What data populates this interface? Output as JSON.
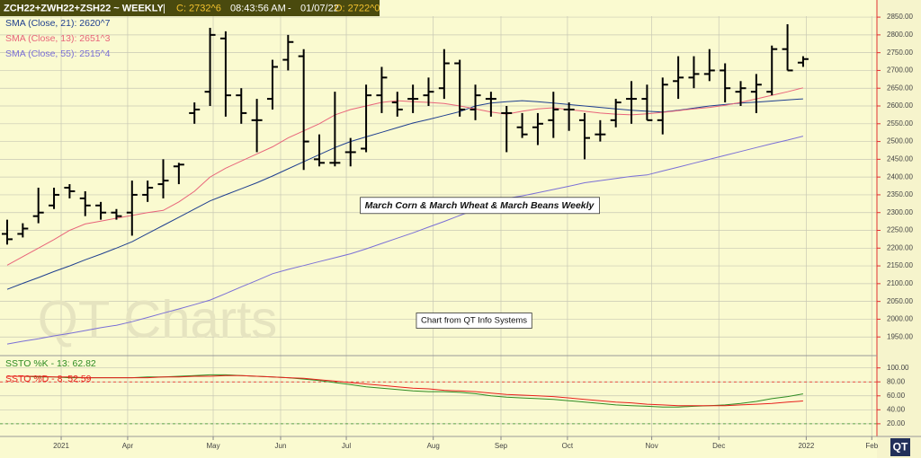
{
  "header": {
    "symbol": "ZCH22+ZWH22+ZSH22  ~  WEEKLY",
    "sep": "|",
    "close": "C: 2732^6",
    "time": "08:43:56 AM",
    "dash": "-",
    "date": "01/07/22",
    "open": "O: 2722^0"
  },
  "logo": "QT",
  "chart_data": [
    {
      "type": "ohlc",
      "color": "#000000",
      "watermark": "QT Charts",
      "annotations": [
        "March Corn & March Wheat & March Beans Weekly",
        "Chart from QT Info Systems"
      ],
      "x": [
        0,
        1,
        2,
        3,
        4,
        5,
        6,
        7,
        8,
        9,
        10,
        11,
        12,
        13,
        14,
        15,
        16,
        17,
        18,
        19,
        20,
        21,
        22,
        23,
        24,
        25,
        26,
        27,
        28,
        29,
        30,
        31,
        32,
        33,
        34,
        35,
        36,
        37,
        38,
        39,
        40,
        41,
        42,
        43,
        44,
        45,
        46,
        47,
        48,
        49,
        50,
        51
      ],
      "open": [
        2240,
        2240,
        2290,
        2320,
        2370,
        2340,
        2320,
        2300,
        2300,
        2350,
        2380,
        2430,
        2580,
        2640,
        2790,
        2630,
        2560,
        2620,
        2730,
        2740,
        2450,
        2440,
        2470,
        2480,
        2630,
        2610,
        2620,
        2630,
        2650,
        2720,
        2590,
        2620,
        2580,
        2540,
        2540,
        2560,
        2590,
        2560,
        2520,
        2560,
        2620,
        2620,
        2560,
        2670,
        2680,
        2690,
        2700,
        2640,
        2640,
        2640,
        2760,
        2722
      ],
      "high": [
        2280,
        2270,
        2370,
        2370,
        2380,
        2360,
        2330,
        2310,
        2390,
        2390,
        2450,
        2440,
        2610,
        2820,
        2810,
        2650,
        2620,
        2730,
        2800,
        2760,
        2520,
        2640,
        2510,
        2660,
        2710,
        2640,
        2660,
        2680,
        2760,
        2730,
        2660,
        2640,
        2600,
        2580,
        2580,
        2640,
        2610,
        2580,
        2560,
        2620,
        2670,
        2660,
        2680,
        2740,
        2740,
        2760,
        2720,
        2670,
        2690,
        2770,
        2830,
        2740
      ],
      "low": [
        2210,
        2230,
        2270,
        2310,
        2340,
        2290,
        2280,
        2280,
        2235,
        2330,
        2340,
        2380,
        2550,
        2600,
        2570,
        2550,
        2470,
        2590,
        2700,
        2420,
        2430,
        2430,
        2430,
        2470,
        2580,
        2570,
        2580,
        2600,
        2620,
        2570,
        2560,
        2570,
        2470,
        2510,
        2490,
        2510,
        2530,
        2450,
        2500,
        2540,
        2550,
        2560,
        2520,
        2620,
        2650,
        2670,
        2610,
        2600,
        2580,
        2630,
        2700,
        2710
      ],
      "close": [
        2225,
        2255,
        2300,
        2350,
        2360,
        2320,
        2300,
        2290,
        2350,
        2370,
        2390,
        2435,
        2590,
        2800,
        2630,
        2580,
        2560,
        2710,
        2780,
        2500,
        2440,
        2440,
        2470,
        2630,
        2680,
        2590,
        2620,
        2640,
        2720,
        2590,
        2630,
        2620,
        2580,
        2520,
        2550,
        2590,
        2590,
        2510,
        2520,
        2610,
        2620,
        2560,
        2660,
        2680,
        2690,
        2700,
        2650,
        2650,
        2660,
        2760,
        2700,
        2732
      ],
      "overlays": [
        {
          "name": "SMA (Close, 21): 2620^7",
          "color": "#1f3f8f",
          "values": [
            2084,
            2101,
            2117,
            2134,
            2150,
            2167,
            2183,
            2200,
            2218,
            2241,
            2264,
            2287,
            2310,
            2333,
            2350,
            2367,
            2384,
            2403,
            2423,
            2443,
            2463,
            2483,
            2500,
            2513,
            2526,
            2539,
            2552,
            2562,
            2573,
            2584,
            2600,
            2608,
            2612,
            2615,
            2612,
            2608,
            2604,
            2600,
            2596,
            2592,
            2588,
            2585,
            2583,
            2588,
            2594,
            2600,
            2604,
            2608,
            2611,
            2614,
            2617,
            2620
          ]
        },
        {
          "name": "SMA (Close, 13): 2651^3",
          "color": "#e8647a",
          "values": [
            2152,
            2176,
            2200,
            2224,
            2250,
            2268,
            2276,
            2284,
            2292,
            2300,
            2306,
            2330,
            2360,
            2400,
            2425,
            2445,
            2465,
            2485,
            2510,
            2530,
            2550,
            2575,
            2590,
            2600,
            2610,
            2615,
            2612,
            2610,
            2607,
            2600,
            2592,
            2583,
            2577,
            2585,
            2592,
            2595,
            2590,
            2585,
            2580,
            2577,
            2575,
            2578,
            2582,
            2587,
            2592,
            2596,
            2602,
            2610,
            2620,
            2630,
            2640,
            2651
          ]
        },
        {
          "name": "SMA (Close, 55): 2515^4",
          "color": "#7a6fd6",
          "values": [
            1930,
            1938,
            1945,
            1953,
            1960,
            1968,
            1976,
            1983,
            1993,
            2005,
            2017,
            2029,
            2041,
            2054,
            2072,
            2091,
            2109,
            2128,
            2140,
            2151,
            2162,
            2173,
            2184,
            2198,
            2213,
            2228,
            2243,
            2259,
            2275,
            2292,
            2308,
            2325,
            2340,
            2347,
            2356,
            2365,
            2374,
            2384,
            2390,
            2396,
            2402,
            2406,
            2417,
            2428,
            2439,
            2450,
            2461,
            2472,
            2483,
            2494,
            2504,
            2515
          ]
        }
      ],
      "xlim": [
        -0.46,
        55.73
      ],
      "xticks": [
        {
          "value": 3.46,
          "label": "2021"
        },
        {
          "value": 7.72,
          "label": "Apr"
        },
        {
          "value": 13.2,
          "label": "May"
        },
        {
          "value": 17.52,
          "label": "Jun"
        },
        {
          "value": 21.73,
          "label": "Jul"
        },
        {
          "value": 27.3,
          "label": "Aug"
        },
        {
          "value": 31.64,
          "label": "Sep"
        },
        {
          "value": 35.9,
          "label": "Oct"
        },
        {
          "value": 41.3,
          "label": "Nov"
        },
        {
          "value": 45.6,
          "label": "Dec"
        },
        {
          "value": 51.2,
          "label": "2022"
        },
        {
          "value": 55.4,
          "label": "Feb"
        }
      ],
      "ylim": [
        1900,
        2878
      ],
      "yticks": [
        {
          "value": 1950,
          "label": "1950.00"
        },
        {
          "value": 2000,
          "label": "2000.00"
        },
        {
          "value": 2050,
          "label": "2050.00"
        },
        {
          "value": 2100,
          "label": "2100.00"
        },
        {
          "value": 2150,
          "label": "2150.00"
        },
        {
          "value": 2200,
          "label": "2200.00"
        },
        {
          "value": 2250,
          "label": "2250.00"
        },
        {
          "value": 2300,
          "label": "2300.00"
        },
        {
          "value": 2350,
          "label": "2350.00"
        },
        {
          "value": 2400,
          "label": "2400.00"
        },
        {
          "value": 2450,
          "label": "2450.00"
        },
        {
          "value": 2500,
          "label": "2500.00"
        },
        {
          "value": 2550,
          "label": "2550.00"
        },
        {
          "value": 2600,
          "label": "2600.00"
        },
        {
          "value": 2650,
          "label": "2650.00"
        },
        {
          "value": 2700,
          "label": "2700.00"
        },
        {
          "value": 2750,
          "label": "2750.00"
        },
        {
          "value": 2800,
          "label": "2800.00"
        },
        {
          "value": 2850,
          "label": "2850.00"
        }
      ],
      "grid": true
    },
    {
      "type": "line",
      "series": [
        {
          "name": "SSTO %K - 13: 62.82",
          "color": "#2e8b22",
          "values": [
            88,
            88,
            87,
            87,
            86,
            86,
            86,
            86,
            86,
            87,
            87,
            88,
            89,
            90,
            90,
            89,
            88,
            87,
            86,
            84,
            82,
            79,
            76,
            73,
            71,
            69,
            67,
            66,
            66,
            65,
            63,
            60,
            58,
            57,
            56,
            55,
            53,
            51,
            49,
            47,
            46,
            45,
            44,
            44,
            45,
            46,
            47,
            49,
            52,
            56,
            59,
            62.82
          ]
        },
        {
          "name": "SSTO %D - 8: 52.59",
          "color": "#e8201c",
          "values": [
            88,
            88,
            88,
            87,
            87,
            86,
            86,
            86,
            86,
            86,
            87,
            87,
            88,
            88,
            89,
            89,
            88,
            87,
            86,
            85,
            83,
            81,
            79,
            77,
            75,
            73,
            71,
            70,
            68,
            67,
            66,
            64,
            62,
            61,
            60,
            59,
            57,
            55,
            53,
            51,
            50,
            48,
            47,
            46,
            46,
            46,
            46,
            47,
            48,
            49,
            51,
            52.59
          ]
        }
      ],
      "levels": [
        {
          "value": 80,
          "color": "#e8201c"
        },
        {
          "value": 20,
          "color": "#2e8b22"
        }
      ],
      "ylim": [
        7,
        115
      ],
      "yticks": [
        {
          "value": 20,
          "label": "20.00"
        },
        {
          "value": 40,
          "label": "40.00"
        },
        {
          "value": 60,
          "label": "60.00"
        },
        {
          "value": 80,
          "label": "80.00"
        },
        {
          "value": 100,
          "label": "100.00"
        }
      ],
      "grid": true
    }
  ]
}
